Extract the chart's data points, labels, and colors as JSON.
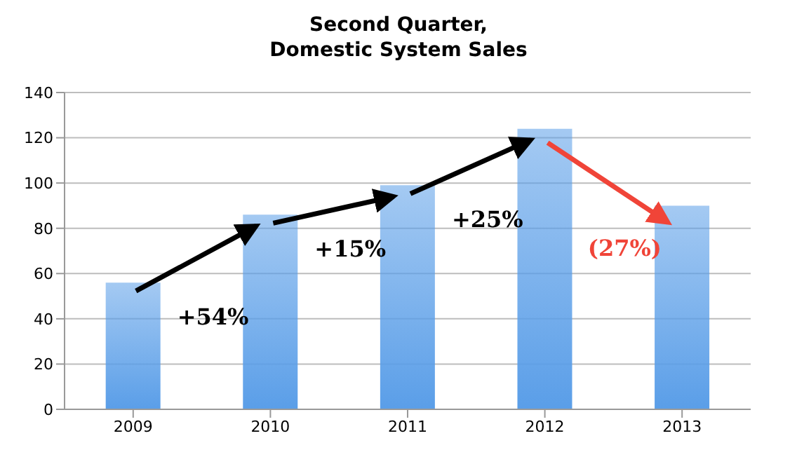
{
  "chart_data": {
    "type": "bar",
    "title": "Second Quarter,\nDomestic System Sales",
    "categories": [
      "2009",
      "2010",
      "2011",
      "2012",
      "2013"
    ],
    "values": [
      56,
      86,
      99,
      124,
      90
    ],
    "color": "#5a9ee8",
    "ylim": [
      0,
      140
    ],
    "yticks": [
      0,
      20,
      40,
      60,
      80,
      100,
      120,
      140
    ],
    "grid": "y",
    "annotations": [
      "+54%",
      "+15%",
      "+25%",
      "(27%)"
    ]
  }
}
